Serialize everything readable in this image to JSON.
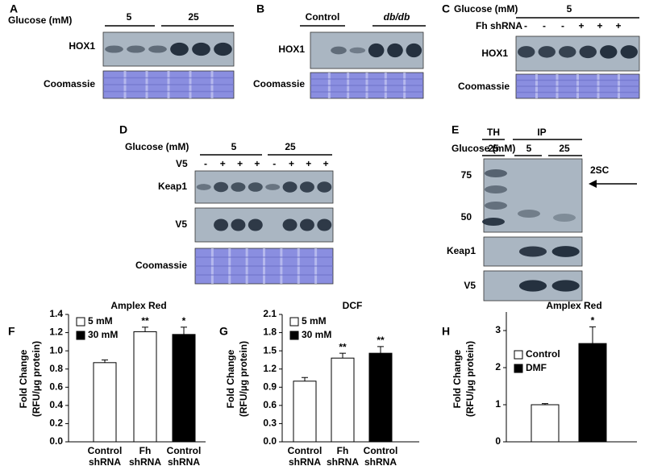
{
  "panels": {
    "A": {
      "letter": "A",
      "condition": "Glucose (mM)",
      "groups": [
        "5",
        "25"
      ],
      "rows": [
        "HOX1",
        "Coomassie"
      ]
    },
    "B": {
      "letter": "B",
      "groups": [
        "Control",
        "db/db"
      ],
      "rows": [
        "HOX1",
        "Coomassie"
      ]
    },
    "C": {
      "letter": "C",
      "condition": "Glucose (mM)",
      "groups": [
        "5"
      ],
      "treatment": "Fh shRNA",
      "signs": [
        "-",
        "-",
        "-",
        "+",
        "+",
        "+"
      ],
      "rows": [
        "HOX1",
        "Coomassie"
      ]
    },
    "D": {
      "letter": "D",
      "condition": "Glucose (mM)",
      "groups": [
        "5",
        "25"
      ],
      "treatment": "V5",
      "signs": [
        "-",
        "+",
        "+",
        "+",
        "-",
        "+",
        "+",
        "+"
      ],
      "rows": [
        "Keap1",
        "V5",
        "Coomassie"
      ]
    },
    "E": {
      "letter": "E",
      "fractions": [
        "TH",
        "IP"
      ],
      "condition": "Glucose (mM)",
      "groups": [
        "25",
        "5",
        "25"
      ],
      "markers": [
        "75",
        "50"
      ],
      "annotation": "2SC",
      "rows": [
        "Keap1",
        "V5"
      ]
    }
  },
  "chart_data": [
    {
      "type": "bar",
      "letter": "F",
      "title": "Amplex Red",
      "ylabel": [
        "Fold Change",
        "(RFU/µg protein)"
      ],
      "categories": [
        "Control shRNA",
        "Fh shRNA",
        "Control shRNA"
      ],
      "values": [
        0.87,
        1.21,
        1.18
      ],
      "errors": [
        0.03,
        0.05,
        0.08
      ],
      "colors": [
        "#ffffff",
        "#ffffff",
        "#000000"
      ],
      "annotations": [
        null,
        "**",
        "*"
      ],
      "legend": [
        {
          "name": "5 mM",
          "color": "#ffffff"
        },
        {
          "name": "30 mM",
          "color": "#000000"
        }
      ],
      "ylim": [
        0,
        1.4
      ],
      "yticks": [
        {
          "value": 0,
          "label": "0.0"
        },
        0.2,
        0.4,
        0.6,
        0.8,
        {
          "value": 1,
          "label": "1.0"
        },
        1.2,
        1.4
      ]
    },
    {
      "type": "bar",
      "letter": "G",
      "title": "DCF",
      "ylabel": [
        "Fold Change",
        "(RFU/µg protein)"
      ],
      "categories": [
        "Control shRNA",
        "Fh shRNA",
        "Control shRNA"
      ],
      "values": [
        1.0,
        1.38,
        1.46
      ],
      "errors": [
        0.06,
        0.08,
        0.11
      ],
      "colors": [
        "#ffffff",
        "#ffffff",
        "#000000"
      ],
      "annotations": [
        null,
        "**",
        "**"
      ],
      "legend": [
        {
          "name": "5 mM",
          "color": "#ffffff"
        },
        {
          "name": "30 mM",
          "color": "#000000"
        }
      ],
      "ylim": [
        0,
        2.1
      ],
      "yticks": [
        {
          "value": 0,
          "label": "0.0"
        },
        0.3,
        0.6,
        0.9,
        1.2,
        1.5,
        1.8,
        2.1
      ]
    },
    {
      "type": "bar",
      "letter": "H",
      "title": "Amplex Red",
      "ylabel": [
        "Fold Change",
        "(RFU/µg protein)"
      ],
      "categories": [
        null,
        null
      ],
      "values": [
        1.0,
        2.65
      ],
      "errors": [
        0.03,
        0.45
      ],
      "colors": [
        "#ffffff",
        "#000000"
      ],
      "annotations": [
        null,
        "*"
      ],
      "legend": [
        {
          "name": "Control",
          "color": "#ffffff"
        },
        {
          "name": "DMF",
          "color": "#000000"
        }
      ],
      "ylim": [
        0,
        3.5
      ],
      "yticks": [
        0,
        1,
        2,
        3
      ]
    }
  ]
}
